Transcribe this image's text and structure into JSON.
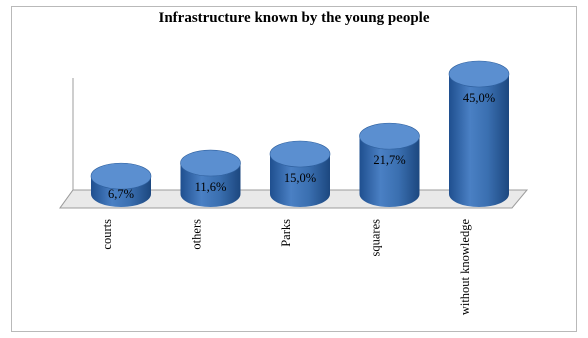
{
  "chart_data": {
    "type": "bar",
    "title": "Infrastructure known by the young people",
    "categories": [
      "courts",
      "others",
      "Parks",
      "squares",
      "without knowledge"
    ],
    "values": [
      6.7,
      11.6,
      15.0,
      21.7,
      45.0
    ],
    "value_labels": [
      "6,7%",
      "11,6%",
      "15,0%",
      "21,7%",
      "45,0%"
    ],
    "xlabel": "",
    "ylabel": "",
    "ylim": [
      0,
      45
    ],
    "grid": false,
    "legend": "none",
    "bar_shape": "cylinder",
    "colors": {
      "bar": "#3a6fb0",
      "bar_top": "#5b8fd0",
      "floor": "#e6e6e6",
      "frame": "#b9b9b9"
    }
  }
}
